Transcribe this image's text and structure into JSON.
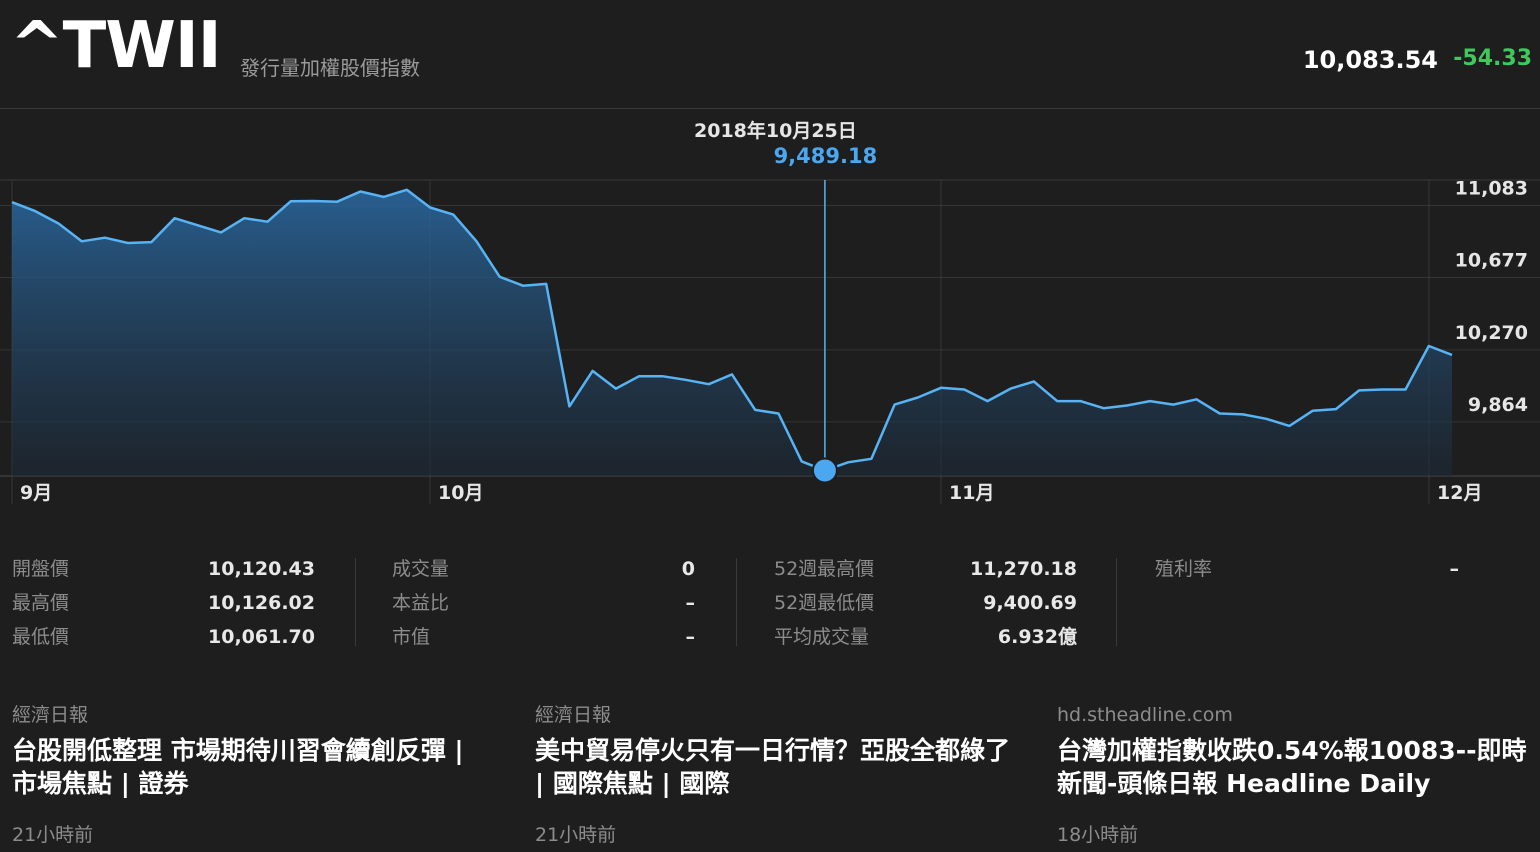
{
  "header": {
    "symbol": "^TWII",
    "name": "發行量加權股價指數",
    "price": "10,083.54",
    "change": "-54.33"
  },
  "tooltip": {
    "date": "2018年10月25日",
    "value": "9,489.18"
  },
  "chart_data": {
    "type": "area",
    "y_ticks": [
      "11,083",
      "10,677",
      "10,270",
      "9,864"
    ],
    "x_ticks": [
      "9月",
      "10月",
      "11月",
      "12月"
    ],
    "values": [
      11000,
      10950,
      10880,
      10780,
      10800,
      10770,
      10775,
      10910,
      10870,
      10830,
      10910,
      10890,
      11005,
      11007,
      11003,
      11060,
      11030,
      11070,
      10970,
      10930,
      10780,
      10580,
      10530,
      10540,
      9850,
      10050,
      9950,
      10020,
      10020,
      10000,
      9975,
      10030,
      9830,
      9810,
      9540,
      9489,
      9535,
      9555,
      9860,
      9900,
      9955,
      9945,
      9880,
      9950,
      9990,
      9880,
      9880,
      9840,
      9855,
      9880,
      9860,
      9890,
      9810,
      9805,
      9780,
      9740,
      9825,
      9835,
      9940,
      9945,
      9945,
      10190,
      10140
    ],
    "highlight_index": 35,
    "y_range": [
      9458,
      11125
    ],
    "colors": {
      "line": "#58b3f5",
      "marker": "#4aa7f0"
    }
  },
  "stats": {
    "col1": [
      {
        "label": "開盤價",
        "value": "10,120.43"
      },
      {
        "label": "最高價",
        "value": "10,126.02"
      },
      {
        "label": "最低價",
        "value": "10,061.70"
      }
    ],
    "col2": [
      {
        "label": "成交量",
        "value": "0"
      },
      {
        "label": "本益比",
        "value": "–"
      },
      {
        "label": "市值",
        "value": "–"
      }
    ],
    "col3": [
      {
        "label": "52週最高價",
        "value": "11,270.18"
      },
      {
        "label": "52週最低價",
        "value": "9,400.69"
      },
      {
        "label": "平均成交量",
        "value": "6.932億"
      }
    ],
    "col4": [
      {
        "label": "殖利率",
        "value": "–"
      }
    ]
  },
  "news": [
    {
      "source": "經濟日報",
      "title": "台股開低整理 市場期待川習會續創反彈 | 市場焦點 | 證券",
      "time": "21小時前"
    },
    {
      "source": "經濟日報",
      "title": "美中貿易停火只有一日行情？亞股全都綠了 | 國際焦點 | 國際",
      "time": "21小時前"
    },
    {
      "source": "hd.stheadline.com",
      "title": "台灣加權指數收跌0.54%報10083--即時新聞-頭條日報 Headline Daily",
      "time": "18小時前"
    }
  ]
}
